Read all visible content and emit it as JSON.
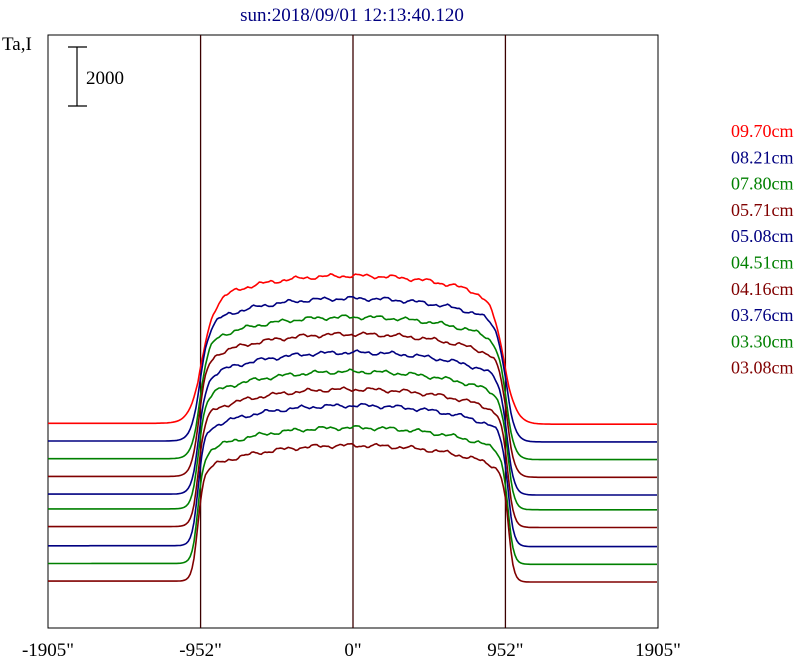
{
  "chart_data": {
    "type": "line",
    "title": "sun:2018/09/01 12:13:40.120",
    "ylabel": "Ta,I",
    "scale_bar_label": "2000",
    "scale_bar_value": 2000,
    "x_ticks": [
      {
        "label": "-1905\"",
        "value": -1905
      },
      {
        "label": "-952\"",
        "value": -952
      },
      {
        "label": "0\"",
        "value": 0
      },
      {
        "label": "952\"",
        "value": 952
      },
      {
        "label": "1905\"",
        "value": 1905
      }
    ],
    "xlim": [
      -1905,
      1905
    ],
    "vertical_lines": [
      -952,
      0,
      952
    ],
    "grid": false,
    "legend_position": "right",
    "colors": {
      "red": "#ff0000",
      "blue": "#000080",
      "green": "#008000",
      "maroon": "#800000"
    },
    "series": [
      {
        "name": "09.70cm",
        "color": "#ff0000",
        "baseline": 5650,
        "amplitude": 5000,
        "limb": 950,
        "edge": 110
      },
      {
        "name": "08.21cm",
        "color": "#000080",
        "baseline": 5050,
        "amplitude": 4830,
        "limb": 960,
        "edge": 80
      },
      {
        "name": "07.80cm",
        "color": "#008000",
        "baseline": 4450,
        "amplitude": 4800,
        "limb": 960,
        "edge": 75
      },
      {
        "name": "05.71cm",
        "color": "#800000",
        "baseline": 3850,
        "amplitude": 4820,
        "limb": 965,
        "edge": 70
      },
      {
        "name": "05.08cm",
        "color": "#000080",
        "baseline": 3250,
        "amplitude": 4800,
        "limb": 965,
        "edge": 65
      },
      {
        "name": "04.51cm",
        "color": "#008000",
        "baseline": 2750,
        "amplitude": 4650,
        "limb": 968,
        "edge": 60
      },
      {
        "name": "04.16cm",
        "color": "#800000",
        "baseline": 2150,
        "amplitude": 4650,
        "limb": 968,
        "edge": 58
      },
      {
        "name": "03.76cm",
        "color": "#000080",
        "baseline": 1500,
        "amplitude": 4750,
        "limb": 970,
        "edge": 55
      },
      {
        "name": "03.30cm",
        "color": "#008000",
        "baseline": 900,
        "amplitude": 4600,
        "limb": 970,
        "edge": 52
      },
      {
        "name": "03.08cm",
        "color": "#800000",
        "baseline": 300,
        "amplitude": 4600,
        "limb": 972,
        "edge": 50
      }
    ]
  }
}
